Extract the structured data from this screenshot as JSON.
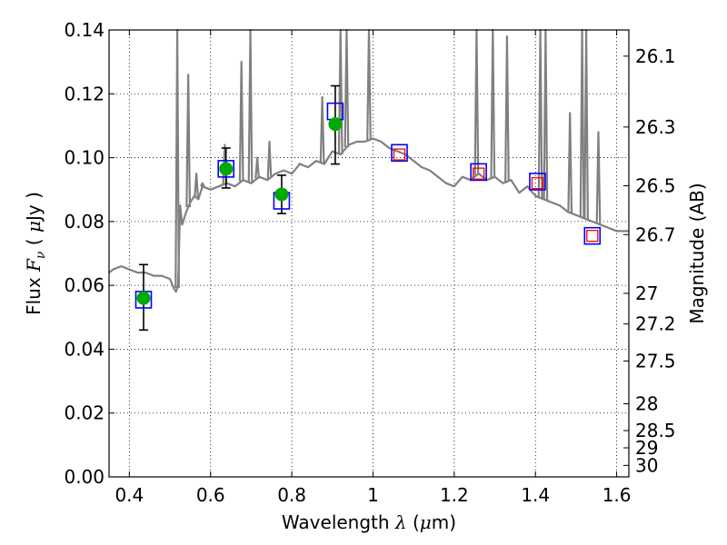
{
  "chart_data": {
    "type": "scatter",
    "title": "",
    "xlabel": "Wavelength λ (μm)",
    "ylabel": "Flux F_ν ( μJy )",
    "ylabel_right": "Magnitude (AB)",
    "xlim": [
      0.35,
      1.63
    ],
    "ylim": [
      0.0,
      0.14
    ],
    "x_ticks": [
      0.4,
      0.6,
      0.8,
      1.0,
      1.2,
      1.4,
      1.6
    ],
    "x_tick_labels": [
      "0.4",
      "0.6",
      "0.8",
      "1",
      "1.2",
      "1.4",
      "1.6"
    ],
    "y_ticks": [
      0.0,
      0.02,
      0.04,
      0.06,
      0.08,
      0.1,
      0.12,
      0.14
    ],
    "y_tick_labels": [
      "0.00",
      "0.02",
      "0.04",
      "0.06",
      "0.08",
      "0.10",
      "0.12",
      "0.14"
    ],
    "right_ticks": [
      {
        "label": "26.1",
        "flux": 0.1318
      },
      {
        "label": "26.3",
        "flux": 0.1096
      },
      {
        "label": "26.5",
        "flux": 0.0912
      },
      {
        "label": "26.7",
        "flux": 0.0759
      },
      {
        "label": "27",
        "flux": 0.0575
      },
      {
        "label": "27.2",
        "flux": 0.0479
      },
      {
        "label": "27.5",
        "flux": 0.0363
      },
      {
        "label": "28",
        "flux": 0.0229
      },
      {
        "label": "28.5",
        "flux": 0.0145
      },
      {
        "label": "29",
        "flux": 0.0091
      },
      {
        "label": "30",
        "flux": 0.0036
      }
    ],
    "grid": true,
    "sed_model": {
      "color": "#808080",
      "x": [
        0.35,
        0.36,
        0.38,
        0.4,
        0.42,
        0.44,
        0.46,
        0.48,
        0.5,
        0.51,
        0.515,
        0.52,
        0.525,
        0.53,
        0.54,
        0.55,
        0.56,
        0.57,
        0.58,
        0.6,
        0.62,
        0.64,
        0.66,
        0.68,
        0.7,
        0.72,
        0.74,
        0.76,
        0.78,
        0.8,
        0.82,
        0.84,
        0.86,
        0.88,
        0.9,
        0.92,
        0.94,
        0.96,
        0.98,
        1.0,
        1.02,
        1.04,
        1.06,
        1.08,
        1.1,
        1.12,
        1.14,
        1.16,
        1.18,
        1.2,
        1.22,
        1.24,
        1.26,
        1.28,
        1.3,
        1.32,
        1.34,
        1.36,
        1.38,
        1.4,
        1.42,
        1.44,
        1.46,
        1.48,
        1.5,
        1.52,
        1.54,
        1.56,
        1.58,
        1.6,
        1.63
      ],
      "y": [
        0.064,
        0.065,
        0.066,
        0.065,
        0.064,
        0.064,
        0.063,
        0.063,
        0.062,
        0.059,
        0.058,
        0.06,
        0.085,
        0.079,
        0.083,
        0.086,
        0.088,
        0.087,
        0.091,
        0.09,
        0.091,
        0.092,
        0.091,
        0.093,
        0.092,
        0.094,
        0.093,
        0.095,
        0.096,
        0.095,
        0.098,
        0.097,
        0.099,
        0.098,
        0.102,
        0.101,
        0.104,
        0.105,
        0.105,
        0.106,
        0.105,
        0.103,
        0.102,
        0.101,
        0.099,
        0.097,
        0.096,
        0.094,
        0.092,
        0.091,
        0.094,
        0.093,
        0.095,
        0.093,
        0.094,
        0.092,
        0.093,
        0.089,
        0.091,
        0.088,
        0.087,
        0.086,
        0.085,
        0.083,
        0.082,
        0.081,
        0.08,
        0.079,
        0.078,
        0.077,
        0.077
      ],
      "emission_lines": [
        {
          "x": 0.518,
          "peak": 0.14
        },
        {
          "x": 0.545,
          "peak": 0.126
        },
        {
          "x": 0.565,
          "peak": 0.095
        },
        {
          "x": 0.58,
          "peak": 0.092
        },
        {
          "x": 0.635,
          "peak": 0.104
        },
        {
          "x": 0.676,
          "peak": 0.13
        },
        {
          "x": 0.698,
          "peak": 0.14
        },
        {
          "x": 0.715,
          "peak": 0.1
        },
        {
          "x": 0.745,
          "peak": 0.105
        },
        {
          "x": 0.82,
          "peak": 0.098
        },
        {
          "x": 0.875,
          "peak": 0.119
        },
        {
          "x": 0.92,
          "peak": 0.14
        },
        {
          "x": 0.935,
          "peak": 0.14
        },
        {
          "x": 0.99,
          "peak": 0.14
        },
        {
          "x": 1.255,
          "peak": 0.14
        },
        {
          "x": 1.295,
          "peak": 0.14
        },
        {
          "x": 1.33,
          "peak": 0.138
        },
        {
          "x": 1.412,
          "peak": 0.14
        },
        {
          "x": 1.425,
          "peak": 0.14
        },
        {
          "x": 1.485,
          "peak": 0.114
        },
        {
          "x": 1.515,
          "peak": 0.14
        },
        {
          "x": 1.525,
          "peak": 0.14
        },
        {
          "x": 1.555,
          "peak": 0.108
        }
      ]
    },
    "model_photometry": {
      "marker": "square",
      "color": "#0000ff",
      "x": [
        0.435,
        0.638,
        0.775,
        0.907,
        1.065,
        1.26,
        1.405,
        1.54
      ],
      "y": [
        0.0555,
        0.0965,
        0.0865,
        0.1145,
        0.1015,
        0.0955,
        0.0925,
        0.0755
      ]
    },
    "upper_limits": {
      "marker": "square",
      "color": "#ff0000",
      "x": [
        1.065,
        1.26,
        1.405,
        1.54
      ],
      "y": [
        0.101,
        0.095,
        0.092,
        0.0755
      ]
    },
    "observed": {
      "marker": "circle",
      "color": "#00aa00",
      "x": [
        0.435,
        0.638,
        0.775,
        0.907
      ],
      "y": [
        0.056,
        0.0965,
        0.0885,
        0.1105
      ],
      "err_low": [
        0.046,
        0.0905,
        0.0825,
        0.098
      ],
      "err_high": [
        0.0665,
        0.103,
        0.0945,
        0.1225
      ]
    }
  }
}
